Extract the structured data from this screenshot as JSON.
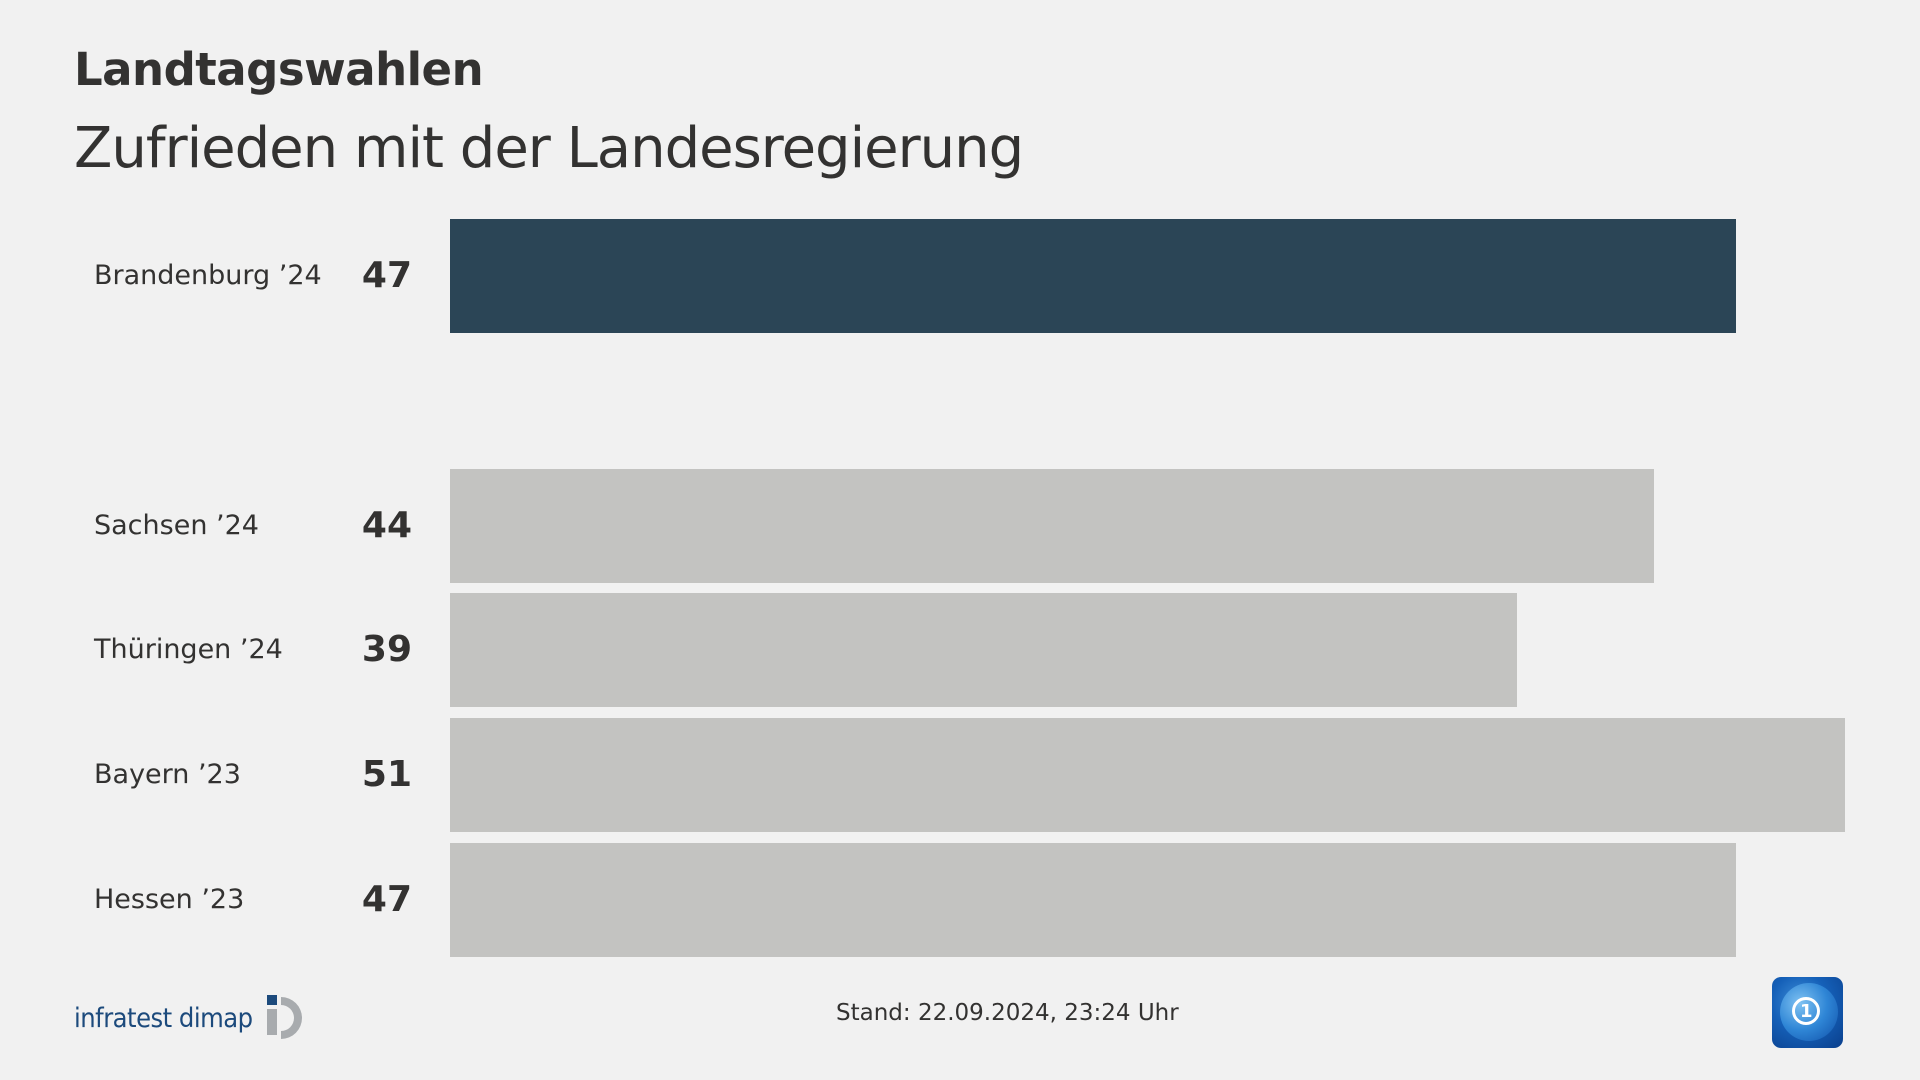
{
  "header": {
    "title": "Landtagswahlen",
    "subtitle": "Zufrieden mit der Landesregierung"
  },
  "rows": [
    {
      "label": "Brandenburg ’24",
      "value": "47"
    },
    {
      "label": "Sachsen ’24",
      "value": "44"
    },
    {
      "label": "Thüringen ’24",
      "value": "39"
    },
    {
      "label": "Bayern ’23",
      "value": "51"
    },
    {
      "label": "Hessen ’23",
      "value": "47"
    }
  ],
  "footer": {
    "source_logo": "infratest dimap",
    "stand": "Stand:  22.09.2024, 23:24 Uhr",
    "broadcaster_logo_icon": "tagesschau-globe-icon"
  },
  "colors": {
    "background": "#f1f1f1",
    "highlight_bar": "#2b4556",
    "bar": "#c3c3c1",
    "text": "#333231",
    "brand_blue": "#1c4a7c"
  },
  "chart_data": {
    "type": "bar",
    "orientation": "horizontal",
    "title": "Landtagswahlen",
    "subtitle": "Zufrieden mit der Landesregierung",
    "categories": [
      "Brandenburg ’24",
      "Sachsen ’24",
      "Thüringen ’24",
      "Bayern ’23",
      "Hessen ’23"
    ],
    "values": [
      47,
      44,
      39,
      51,
      47
    ],
    "highlighted": [
      "Brandenburg ’24"
    ],
    "xlabel": "",
    "ylabel": "",
    "unit": "%",
    "grid": false,
    "legend": null,
    "annotation": "Stand:  22.09.2024, 23:24 Uhr"
  }
}
